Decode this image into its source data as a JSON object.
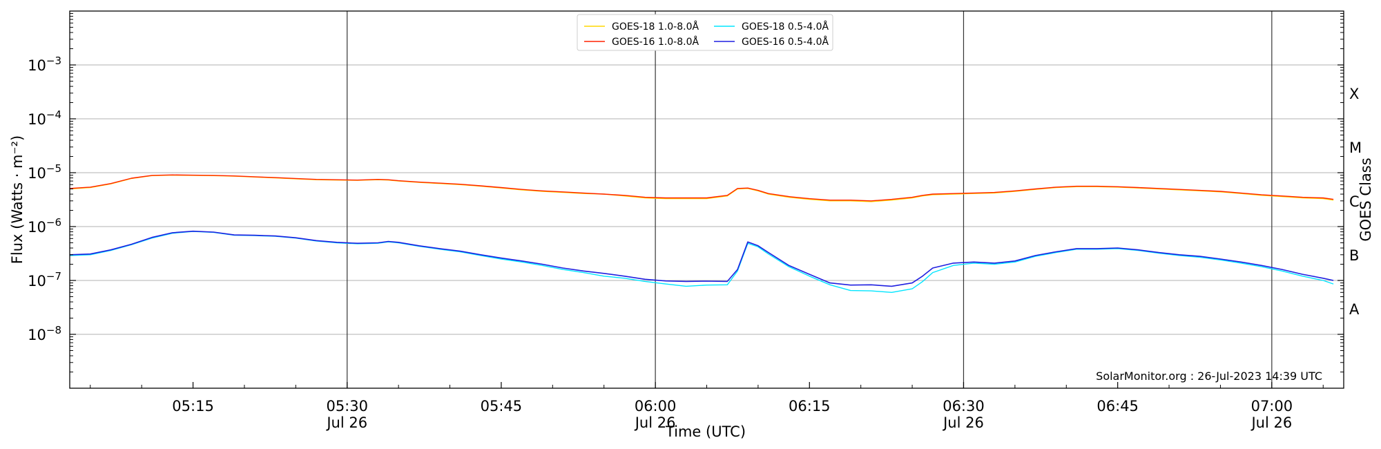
{
  "chart_data": {
    "type": "line",
    "title": "",
    "xlabel": "Time (UTC)",
    "ylabel": "Flux (Watts · m⁻²)",
    "right_axis_label": "GOES Class",
    "y_scale": "log",
    "ylim": [
      1e-09,
      0.01
    ],
    "xlim": [
      "05:03",
      "07:07"
    ],
    "y_ticks": [
      {
        "value": 1e-08,
        "base": "10",
        "exp": "−8"
      },
      {
        "value": 1e-07,
        "base": "10",
        "exp": "−7"
      },
      {
        "value": 1e-06,
        "base": "10",
        "exp": "−6"
      },
      {
        "value": 1e-05,
        "base": "10",
        "exp": "−5"
      },
      {
        "value": 0.0001,
        "base": "10",
        "exp": "−4"
      },
      {
        "value": 0.001,
        "base": "10",
        "exp": "−3"
      }
    ],
    "x_ticks": [
      {
        "t": "05:15",
        "label": "05:15",
        "sub": ""
      },
      {
        "t": "05:30",
        "label": "05:30",
        "sub": "Jul 26"
      },
      {
        "t": "05:45",
        "label": "05:45",
        "sub": ""
      },
      {
        "t": "06:00",
        "label": "06:00",
        "sub": "Jul 26"
      },
      {
        "t": "06:15",
        "label": "06:15",
        "sub": ""
      },
      {
        "t": "06:30",
        "label": "06:30",
        "sub": "Jul 26"
      },
      {
        "t": "06:45",
        "label": "06:45",
        "sub": ""
      },
      {
        "t": "07:00",
        "label": "07:00",
        "sub": "Jul 26"
      }
    ],
    "vertical_lines": [
      "05:30",
      "06:00",
      "06:30",
      "07:00"
    ],
    "goes_classes": [
      {
        "label": "A",
        "value": 3e-08
      },
      {
        "label": "B",
        "value": 3e-07
      },
      {
        "label": "C",
        "value": 3e-06
      },
      {
        "label": "M",
        "value": 3e-05
      },
      {
        "label": "X",
        "value": 0.0003
      }
    ],
    "grid": true,
    "legend_position": "top-center",
    "x": [
      "05:03",
      "05:05",
      "05:07",
      "05:09",
      "05:11",
      "05:13",
      "05:15",
      "05:17",
      "05:19",
      "05:21",
      "05:23",
      "05:25",
      "05:27",
      "05:29",
      "05:31",
      "05:33",
      "05:34",
      "05:35",
      "05:37",
      "05:39",
      "05:41",
      "05:43",
      "05:45",
      "05:47",
      "05:49",
      "05:51",
      "05:53",
      "05:55",
      "05:57",
      "05:59",
      "06:01",
      "06:03",
      "06:05",
      "06:07",
      "06:08",
      "06:09",
      "06:10",
      "06:11",
      "06:13",
      "06:15",
      "06:17",
      "06:19",
      "06:21",
      "06:23",
      "06:25",
      "06:26",
      "06:27",
      "06:29",
      "06:31",
      "06:33",
      "06:35",
      "06:37",
      "06:39",
      "06:41",
      "06:43",
      "06:45",
      "06:47",
      "06:49",
      "06:51",
      "06:53",
      "06:55",
      "06:57",
      "06:59",
      "07:01",
      "07:03",
      "07:05",
      "07:06"
    ],
    "series": [
      {
        "name": "GOES-18 1.0-8.0Å",
        "color": "#ffd700",
        "values": [
          5e-06,
          5.3e-06,
          6.2e-06,
          7.8e-06,
          8.8e-06,
          9e-06,
          8.9e-06,
          8.8e-06,
          8.6e-06,
          8.3e-06,
          8e-06,
          7.7e-06,
          7.4e-06,
          7.3e-06,
          7.2e-06,
          7.4e-06,
          7.3e-06,
          7e-06,
          6.6e-06,
          6.3e-06,
          6e-06,
          5.6e-06,
          5.2e-06,
          4.8e-06,
          4.5e-06,
          4.3e-06,
          4.1e-06,
          4e-06,
          3.7e-06,
          3.4e-06,
          3.3e-06,
          3.3e-06,
          3.3e-06,
          3.7e-06,
          5e-06,
          5.1e-06,
          4.6e-06,
          4e-06,
          3.5e-06,
          3.2e-06,
          3e-06,
          3e-06,
          2.9e-06,
          3.1e-06,
          3.4e-06,
          3.7e-06,
          3.9e-06,
          4e-06,
          4.1e-06,
          4.2e-06,
          4.5e-06,
          4.9e-06,
          5.3e-06,
          5.5e-06,
          5.5e-06,
          5.4e-06,
          5.2e-06,
          5e-06,
          4.8e-06,
          4.6e-06,
          4.4e-06,
          4.1e-06,
          3.8e-06,
          3.6e-06,
          3.4e-06,
          3.3e-06,
          3.1e-06
        ]
      },
      {
        "name": "GOES-16 1.0-8.0Å",
        "color": "#ff2200",
        "values": [
          5.1e-06,
          5.4e-06,
          6.3e-06,
          7.9e-06,
          8.9e-06,
          9.1e-06,
          9e-06,
          8.9e-06,
          8.7e-06,
          8.4e-06,
          8.1e-06,
          7.8e-06,
          7.5e-06,
          7.4e-06,
          7.3e-06,
          7.5e-06,
          7.4e-06,
          7.1e-06,
          6.7e-06,
          6.4e-06,
          6.1e-06,
          5.7e-06,
          5.3e-06,
          4.9e-06,
          4.6e-06,
          4.4e-06,
          4.2e-06,
          4e-06,
          3.8e-06,
          3.5e-06,
          3.4e-06,
          3.4e-06,
          3.4e-06,
          3.8e-06,
          5.1e-06,
          5.2e-06,
          4.7e-06,
          4.1e-06,
          3.6e-06,
          3.3e-06,
          3.1e-06,
          3.1e-06,
          3e-06,
          3.2e-06,
          3.5e-06,
          3.8e-06,
          4e-06,
          4.1e-06,
          4.2e-06,
          4.3e-06,
          4.6e-06,
          5e-06,
          5.4e-06,
          5.6e-06,
          5.6e-06,
          5.5e-06,
          5.3e-06,
          5.1e-06,
          4.9e-06,
          4.7e-06,
          4.5e-06,
          4.2e-06,
          3.9e-06,
          3.7e-06,
          3.5e-06,
          3.4e-06,
          3.2e-06
        ]
      },
      {
        "name": "GOES-18 0.5-4.0Å",
        "color": "#00e5ff",
        "values": [
          2.9e-07,
          3e-07,
          3.6e-07,
          4.6e-07,
          6.1e-07,
          7.5e-07,
          8.1e-07,
          7.8e-07,
          6.9e-07,
          6.8e-07,
          6.6e-07,
          6.1e-07,
          5.4e-07,
          5e-07,
          4.8e-07,
          4.9e-07,
          5.2e-07,
          5e-07,
          4.3e-07,
          3.8e-07,
          3.4e-07,
          2.9e-07,
          2.5e-07,
          2.2e-07,
          1.9e-07,
          1.6e-07,
          1.4e-07,
          1.2e-07,
          1.1e-07,
          9.6e-08,
          8.6e-08,
          7.8e-08,
          8.2e-08,
          8.3e-08,
          1.5e-07,
          4.9e-07,
          4.2e-07,
          3.1e-07,
          1.8e-07,
          1.2e-07,
          8.3e-08,
          6.5e-08,
          6.4e-08,
          6e-08,
          7e-08,
          9.5e-08,
          1.4e-07,
          1.9e-07,
          2.1e-07,
          2e-07,
          2.2e-07,
          2.8e-07,
          3.3e-07,
          3.8e-07,
          3.8e-07,
          3.9e-07,
          3.6e-07,
          3.2e-07,
          2.9e-07,
          2.7e-07,
          2.4e-07,
          2.1e-07,
          1.8e-07,
          1.5e-07,
          1.2e-07,
          1e-07,
          8.6e-08
        ]
      },
      {
        "name": "GOES-16 0.5-4.0Å",
        "color": "#1f1fe0",
        "values": [
          3e-07,
          3.1e-07,
          3.7e-07,
          4.7e-07,
          6.3e-07,
          7.7e-07,
          8.2e-07,
          7.9e-07,
          7e-07,
          6.9e-07,
          6.7e-07,
          6.2e-07,
          5.5e-07,
          5.1e-07,
          4.9e-07,
          5e-07,
          5.3e-07,
          5.1e-07,
          4.4e-07,
          3.9e-07,
          3.5e-07,
          3e-07,
          2.6e-07,
          2.3e-07,
          2e-07,
          1.7e-07,
          1.5e-07,
          1.35e-07,
          1.2e-07,
          1.05e-07,
          9.8e-08,
          9.6e-08,
          9.7e-08,
          9.6e-08,
          1.6e-07,
          5.2e-07,
          4.4e-07,
          3.3e-07,
          1.9e-07,
          1.3e-07,
          9e-08,
          8.2e-08,
          8.3e-08,
          7.8e-08,
          9e-08,
          1.2e-07,
          1.7e-07,
          2.1e-07,
          2.2e-07,
          2.1e-07,
          2.3e-07,
          2.9e-07,
          3.4e-07,
          3.9e-07,
          3.9e-07,
          4e-07,
          3.7e-07,
          3.3e-07,
          3e-07,
          2.8e-07,
          2.5e-07,
          2.2e-07,
          1.9e-07,
          1.6e-07,
          1.3e-07,
          1.1e-07,
          1e-07
        ]
      }
    ],
    "legend_order": [
      0,
      2,
      1,
      3
    ],
    "watermark": "SolarMonitor.org : 26-Jul-2023 14:39 UTC"
  }
}
